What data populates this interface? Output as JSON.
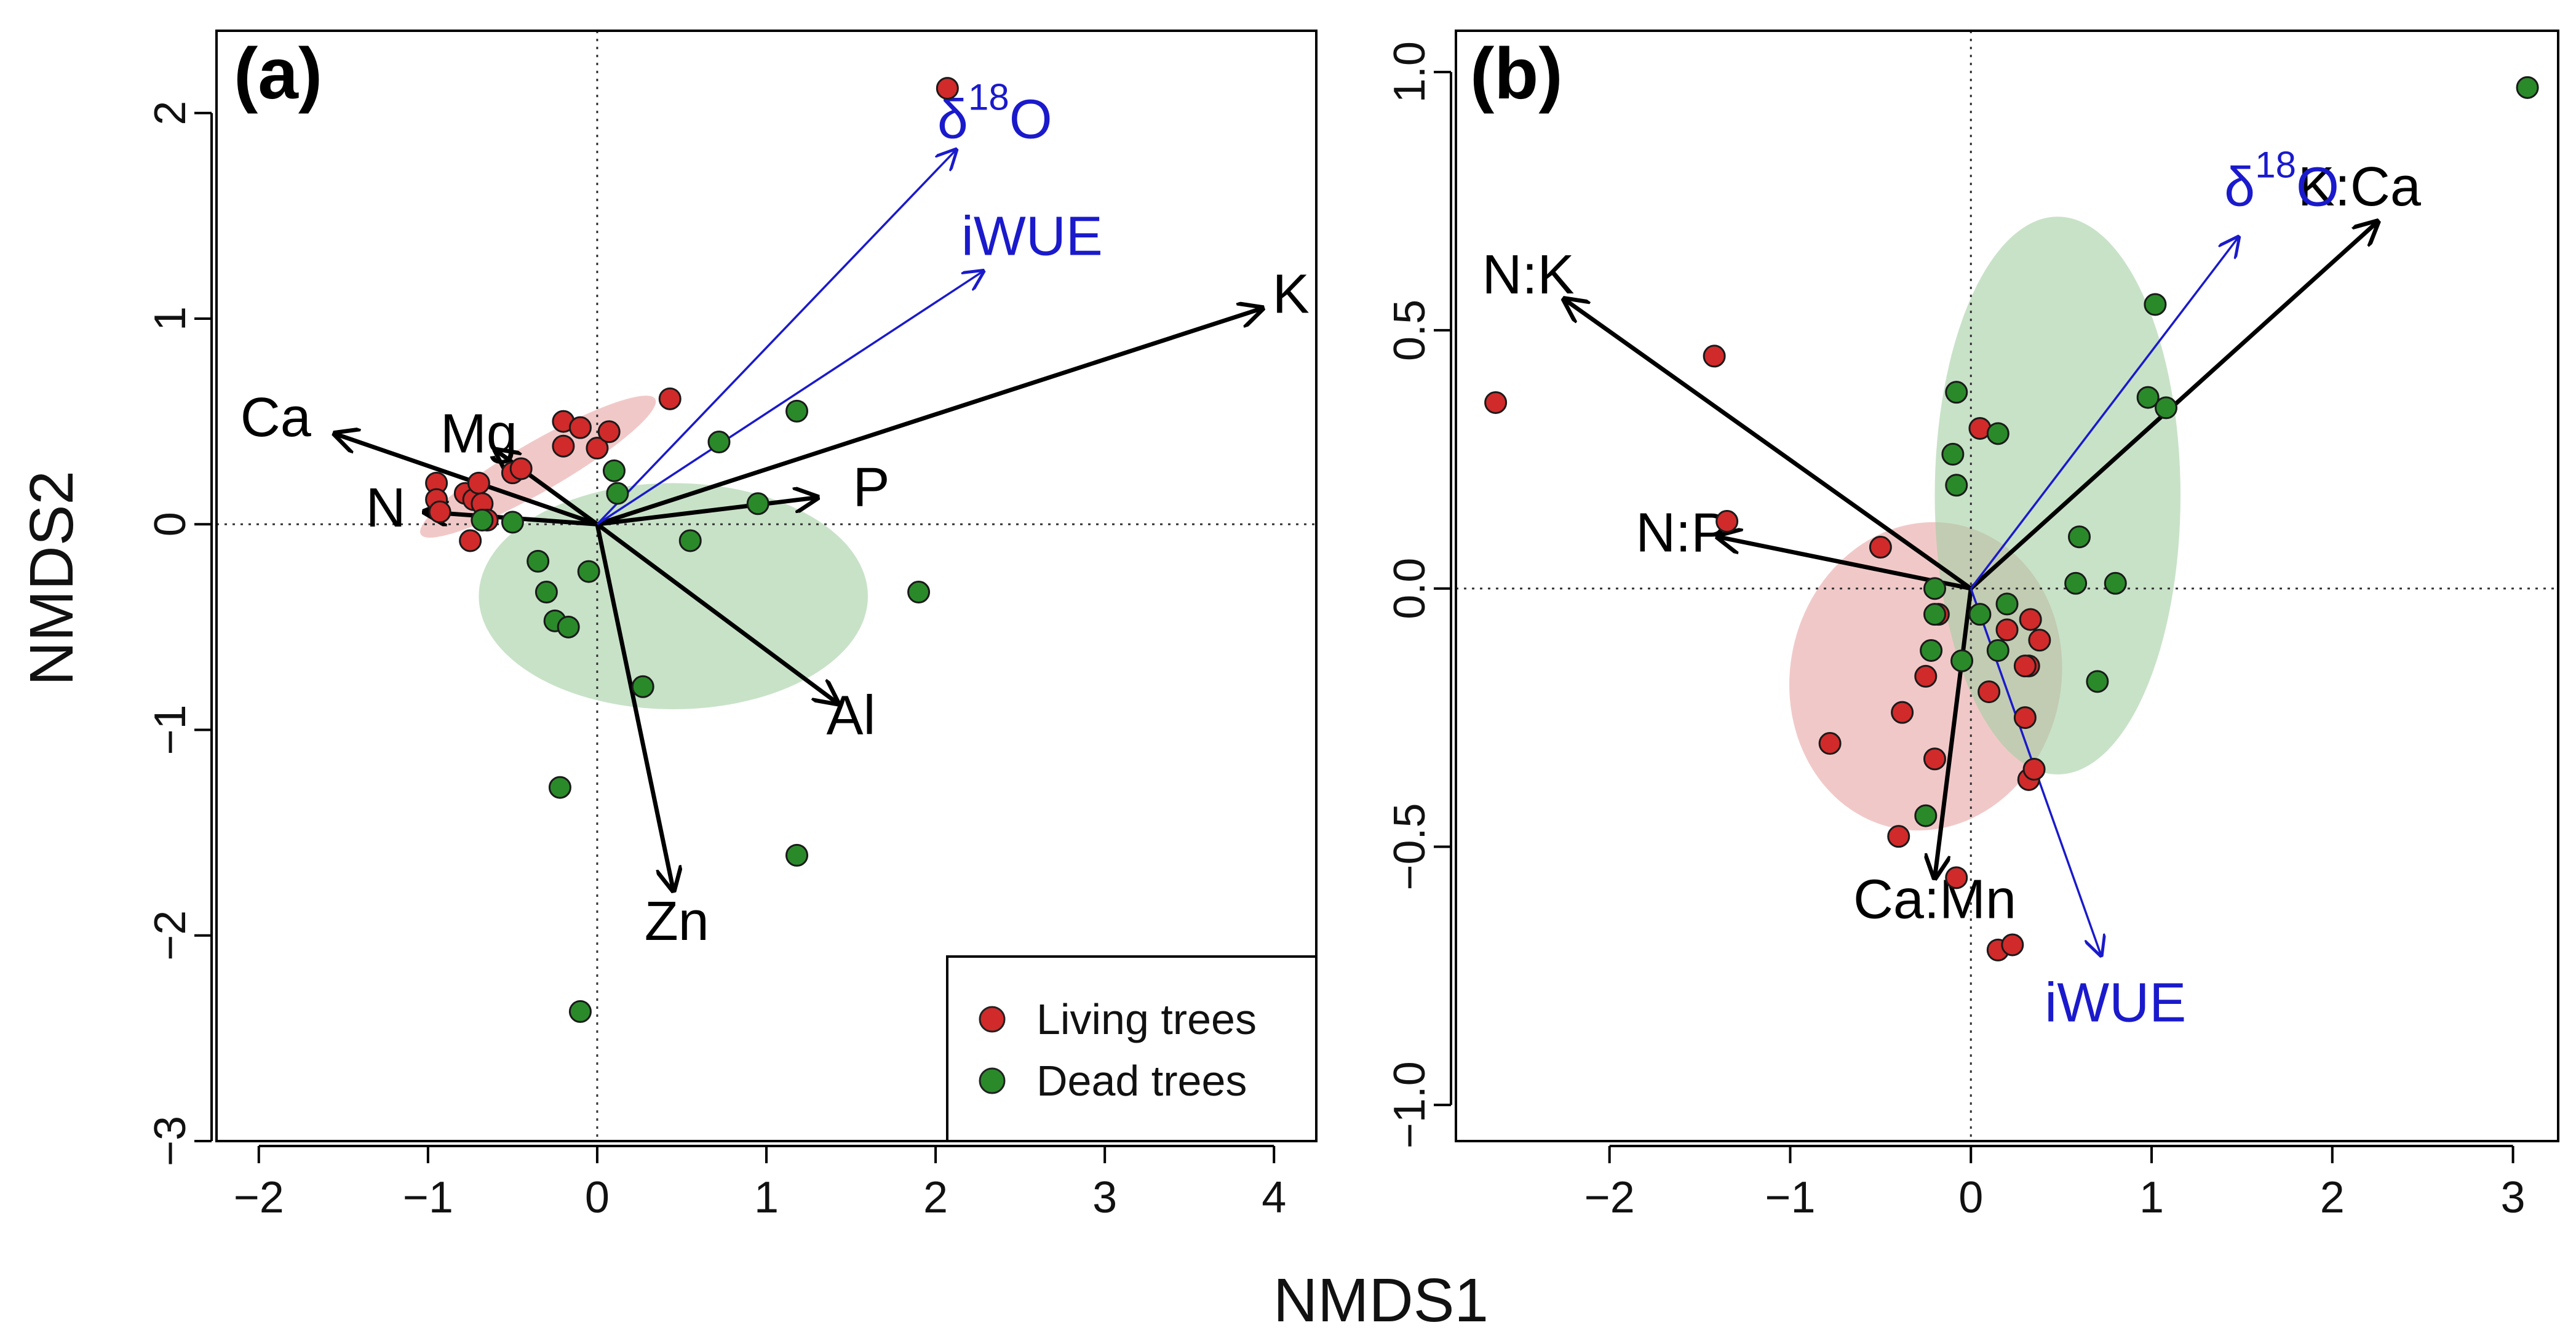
{
  "colors": {
    "living": "#d12a2a",
    "dead": "#2a8a2a",
    "living_ellipse": "#e8a3a3",
    "dead_ellipse": "#a3cfa3",
    "black_vector": "#000000",
    "blue_vector": "#1a1acc"
  },
  "shared": {
    "xlabel": "NMDS1",
    "ylabel": "NMDS2"
  },
  "legend": {
    "living_label": "Living trees",
    "dead_label": "Dead trees"
  },
  "chart_data": [
    {
      "type": "scatter",
      "panel_label": "(a)",
      "xlim": [
        -2.25,
        4.25
      ],
      "ylim": [
        -3.0,
        2.4
      ],
      "xticks": [
        "−2",
        "−1",
        "0",
        "1",
        "2",
        "3",
        "4"
      ],
      "xtick_values": [
        -2,
        -1,
        0,
        1,
        2,
        3,
        4
      ],
      "yticks": [
        "−3",
        "−2",
        "−1",
        "0",
        "1",
        "2"
      ],
      "ytick_values": [
        -3,
        -2,
        -1,
        0,
        1,
        2
      ],
      "legend_position": "bottom-right",
      "series": [
        {
          "name": "Living trees",
          "points": [
            [
              -0.95,
              0.2
            ],
            [
              -0.95,
              0.12
            ],
            [
              -0.93,
              0.06
            ],
            [
              -0.78,
              0.15
            ],
            [
              -0.73,
              0.12
            ],
            [
              -0.7,
              0.2
            ],
            [
              -0.68,
              0.1
            ],
            [
              -0.65,
              0.02
            ],
            [
              -0.75,
              -0.08
            ],
            [
              -0.5,
              0.25
            ],
            [
              -0.45,
              0.27
            ],
            [
              -0.2,
              0.5
            ],
            [
              -0.1,
              0.47
            ],
            [
              -0.2,
              0.38
            ],
            [
              0.0,
              0.37
            ],
            [
              0.07,
              0.45
            ],
            [
              0.43,
              0.61
            ],
            [
              2.07,
              2.12
            ]
          ]
        },
        {
          "name": "Dead trees",
          "points": [
            [
              -0.68,
              0.02
            ],
            [
              -0.5,
              0.01
            ],
            [
              -0.35,
              -0.18
            ],
            [
              -0.3,
              -0.33
            ],
            [
              -0.25,
              -0.47
            ],
            [
              -0.17,
              -0.5
            ],
            [
              -0.05,
              -0.23
            ],
            [
              0.1,
              0.26
            ],
            [
              0.12,
              0.15
            ],
            [
              0.55,
              -0.08
            ],
            [
              0.72,
              0.4
            ],
            [
              0.95,
              0.1
            ],
            [
              1.18,
              0.55
            ],
            [
              1.9,
              -0.33
            ],
            [
              0.27,
              -0.79
            ],
            [
              -0.22,
              -1.28
            ],
            [
              1.18,
              -1.61
            ],
            [
              -0.1,
              -2.37
            ]
          ]
        }
      ],
      "ellipses": [
        {
          "group": "Living trees",
          "center": [
            -0.35,
            0.28
          ],
          "radii": [
            0.8,
            0.12
          ],
          "angle_deg": 30
        },
        {
          "group": "Dead trees",
          "center": [
            0.45,
            -0.35
          ],
          "radii": [
            1.15,
            0.55
          ],
          "angle_deg": 0
        }
      ],
      "vectors": [
        {
          "label": "Ca",
          "end": [
            -1.55,
            0.44
          ],
          "label_pos": [
            -1.9,
            0.5
          ],
          "color": "black"
        },
        {
          "label": "Mg",
          "end": [
            -0.6,
            0.36
          ],
          "label_pos": [
            -0.7,
            0.42
          ],
          "color": "black"
        },
        {
          "label": "N",
          "end": [
            -1.02,
            0.06
          ],
          "label_pos": [
            -1.25,
            0.06
          ],
          "color": "black"
        },
        {
          "label": "P",
          "end": [
            1.3,
            0.13
          ],
          "label_pos": [
            1.62,
            0.16
          ],
          "color": "black"
        },
        {
          "label": "K",
          "end": [
            3.93,
            1.05
          ],
          "label_pos": [
            4.1,
            1.1
          ],
          "color": "black"
        },
        {
          "label": "Al",
          "end": [
            1.42,
            -0.87
          ],
          "label_pos": [
            1.5,
            -0.95
          ],
          "color": "black"
        },
        {
          "label": "Zn",
          "end": [
            0.45,
            -1.78
          ],
          "label_pos": [
            0.47,
            -1.95
          ],
          "color": "black"
        },
        {
          "label": "iWUE",
          "end": [
            2.28,
            1.23
          ],
          "label_pos": [
            2.57,
            1.38
          ],
          "color": "blue"
        },
        {
          "label": "δ18O",
          "label_base": "δ",
          "label_sup": "18",
          "label_tail": "O",
          "end": [
            2.12,
            1.82
          ],
          "label_pos": [
            2.35,
            1.95
          ],
          "color": "blue"
        }
      ]
    },
    {
      "type": "scatter",
      "panel_label": "(b)",
      "xlim": [
        -2.85,
        3.25
      ],
      "ylim": [
        -1.07,
        1.08
      ],
      "xticks": [
        "−2",
        "−1",
        "0",
        "1",
        "2",
        "3"
      ],
      "xtick_values": [
        -2,
        -1,
        0,
        1,
        2,
        3
      ],
      "yticks": [
        "−1.0",
        "−0.5",
        "0.0",
        "0.5",
        "1.0"
      ],
      "ytick_values": [
        -1.0,
        -0.5,
        0.0,
        0.5,
        1.0
      ],
      "series": [
        {
          "name": "Living trees",
          "points": [
            [
              -2.63,
              0.36
            ],
            [
              -1.42,
              0.45
            ],
            [
              -1.35,
              0.13
            ],
            [
              -0.5,
              0.08
            ],
            [
              -0.78,
              -0.3
            ],
            [
              -0.25,
              -0.17
            ],
            [
              -0.38,
              -0.24
            ],
            [
              -0.2,
              -0.33
            ],
            [
              -0.4,
              -0.48
            ],
            [
              -0.08,
              -0.56
            ],
            [
              -0.18,
              -0.05
            ],
            [
              0.05,
              0.31
            ],
            [
              0.1,
              -0.2
            ],
            [
              0.3,
              -0.25
            ],
            [
              0.32,
              -0.37
            ],
            [
              0.35,
              -0.35
            ],
            [
              0.38,
              -0.1
            ],
            [
              0.32,
              -0.15
            ],
            [
              0.33,
              -0.06
            ],
            [
              0.3,
              -0.15
            ],
            [
              0.2,
              -0.08
            ],
            [
              0.15,
              -0.7
            ],
            [
              0.23,
              -0.69
            ]
          ]
        },
        {
          "name": "Dead trees",
          "points": [
            [
              3.08,
              0.97
            ],
            [
              1.02,
              0.55
            ],
            [
              0.98,
              0.37
            ],
            [
              1.08,
              0.35
            ],
            [
              -0.08,
              0.38
            ],
            [
              -0.1,
              0.26
            ],
            [
              -0.08,
              0.2
            ],
            [
              0.15,
              0.3
            ],
            [
              0.6,
              0.1
            ],
            [
              0.8,
              0.01
            ],
            [
              0.58,
              0.01
            ],
            [
              0.7,
              -0.18
            ],
            [
              0.2,
              -0.03
            ],
            [
              0.05,
              -0.05
            ],
            [
              -0.2,
              -0.05
            ],
            [
              -0.2,
              0.0
            ],
            [
              -0.22,
              -0.12
            ],
            [
              -0.05,
              -0.14
            ],
            [
              0.15,
              -0.12
            ],
            [
              -0.25,
              -0.44
            ]
          ]
        }
      ],
      "ellipses": [
        {
          "group": "Living trees",
          "center": [
            -0.25,
            -0.17
          ],
          "radii": [
            0.75,
            0.3
          ],
          "angle_deg": -12
        },
        {
          "group": "Dead trees",
          "center": [
            0.48,
            0.18
          ],
          "radii": [
            0.68,
            0.54
          ],
          "angle_deg": 0
        }
      ],
      "vectors": [
        {
          "label": "N:K",
          "end": [
            -2.25,
            0.56
          ],
          "label_pos": [
            -2.45,
            0.6
          ],
          "color": "black"
        },
        {
          "label": "N:P",
          "end": [
            -1.4,
            0.1
          ],
          "label_pos": [
            -1.6,
            0.1
          ],
          "color": "black"
        },
        {
          "label": "K:Ca",
          "end": [
            2.25,
            0.71
          ],
          "label_pos": [
            2.15,
            0.77
          ],
          "color": "black"
        },
        {
          "label": "Ca:Mn",
          "end": [
            -0.2,
            -0.56
          ],
          "label_pos": [
            -0.2,
            -0.61
          ],
          "color": "black"
        },
        {
          "label": "δ18O",
          "label_base": "δ",
          "label_sup": "18",
          "label_tail": "O",
          "end": [
            1.48,
            0.68
          ],
          "label_pos": [
            1.72,
            0.77
          ],
          "color": "blue"
        },
        {
          "label": "iWUE",
          "end": [
            0.72,
            -0.71
          ],
          "label_pos": [
            0.8,
            -0.81
          ],
          "color": "blue"
        }
      ]
    }
  ]
}
